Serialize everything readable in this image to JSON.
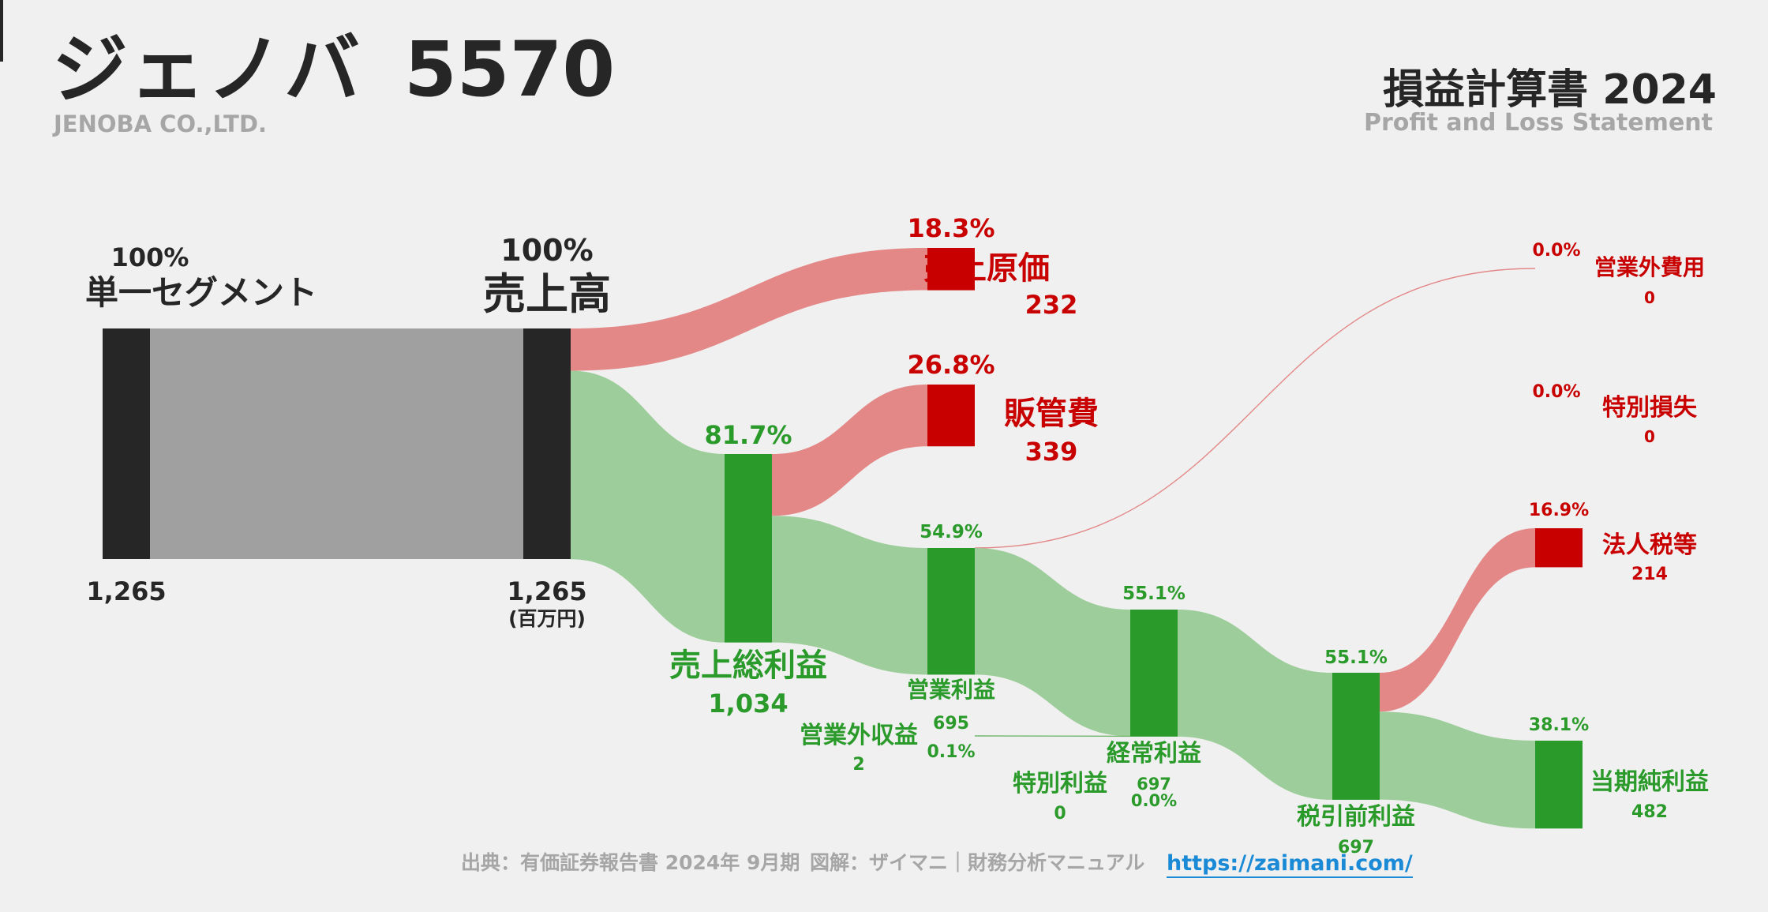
{
  "header": {
    "company_name": "ジェノバ",
    "stock_code": "5570",
    "company_name_en": "JENOBA CO.,LTD.",
    "statement_title": "損益計算書 2024",
    "statement_title_en": "Profit and Loss Statement"
  },
  "footer": {
    "source": "出典：有価証券報告書 2024年 9月期",
    "credit": "図解：ザイマニ｜財務分析マニュアル",
    "url": "https://zaimani.com/"
  },
  "colors": {
    "background": "#f0f0f0",
    "dark_bar": "#262626",
    "gray_flow": "#a0a0a0",
    "red": "#c80000",
    "red_flow": "#e38787",
    "green": "#2a9a2a",
    "green_flow": "#9dcd9a",
    "link": "#1a8ad6"
  },
  "chart_data": {
    "type": "sankey",
    "title": "損益計算書 2024",
    "unit": "(百万円)",
    "nodes": [
      {
        "id": "segment",
        "label": "単一セグメント",
        "value": 1265,
        "value_label": "1,265",
        "pct": "100%",
        "kind": "neutral"
      },
      {
        "id": "revenue",
        "label": "売上高",
        "value": 1265,
        "value_label": "1,265",
        "pct": "100%",
        "kind": "neutral"
      },
      {
        "id": "cogs",
        "label": "売上原価",
        "value": 232,
        "value_label": "232",
        "pct": "18.3%",
        "kind": "cost"
      },
      {
        "id": "gross_profit",
        "label": "売上総利益",
        "value": 1034,
        "value_label": "1,034",
        "pct": "81.7%",
        "kind": "profit"
      },
      {
        "id": "sga",
        "label": "販管費",
        "value": 339,
        "value_label": "339",
        "pct": "26.8%",
        "kind": "cost"
      },
      {
        "id": "operating_profit",
        "label": "営業利益",
        "value": 695,
        "value_label": "695",
        "pct": "54.9%",
        "kind": "profit"
      },
      {
        "id": "non_op_income",
        "label": "営業外収益",
        "value": 2,
        "value_label": "2",
        "pct": "0.1%",
        "kind": "profit"
      },
      {
        "id": "non_op_expense",
        "label": "営業外費用",
        "value": 0,
        "value_label": "0",
        "pct": "0.0%",
        "kind": "cost"
      },
      {
        "id": "ordinary_profit",
        "label": "経常利益",
        "value": 697,
        "value_label": "697",
        "pct": "55.1%",
        "kind": "profit"
      },
      {
        "id": "extraordinary_income",
        "label": "特別利益",
        "value": 0,
        "value_label": "0",
        "pct": "0.0%",
        "kind": "profit"
      },
      {
        "id": "extraordinary_loss",
        "label": "特別損失",
        "value": 0,
        "value_label": "0",
        "pct": "0.0%",
        "kind": "cost"
      },
      {
        "id": "pretax_profit",
        "label": "税引前利益",
        "value": 697,
        "value_label": "697",
        "pct": "55.1%",
        "kind": "profit"
      },
      {
        "id": "income_tax",
        "label": "法人税等",
        "value": 214,
        "value_label": "214",
        "pct": "16.9%",
        "kind": "cost"
      },
      {
        "id": "net_income",
        "label": "当期純利益",
        "value": 482,
        "value_label": "482",
        "pct": "38.1%",
        "kind": "profit"
      }
    ],
    "links": [
      {
        "source": "segment",
        "target": "revenue",
        "value": 1265
      },
      {
        "source": "revenue",
        "target": "cogs",
        "value": 232
      },
      {
        "source": "revenue",
        "target": "gross_profit",
        "value": 1034
      },
      {
        "source": "gross_profit",
        "target": "sga",
        "value": 339
      },
      {
        "source": "gross_profit",
        "target": "operating_profit",
        "value": 695
      },
      {
        "source": "operating_profit",
        "target": "non_op_expense",
        "value": 0
      },
      {
        "source": "operating_profit",
        "target": "ordinary_profit",
        "value": 695
      },
      {
        "source": "non_op_income",
        "target": "ordinary_profit",
        "value": 2
      },
      {
        "source": "ordinary_profit",
        "target": "pretax_profit",
        "value": 697
      },
      {
        "source": "pretax_profit",
        "target": "income_tax",
        "value": 214
      },
      {
        "source": "pretax_profit",
        "target": "net_income",
        "value": 482
      }
    ]
  }
}
